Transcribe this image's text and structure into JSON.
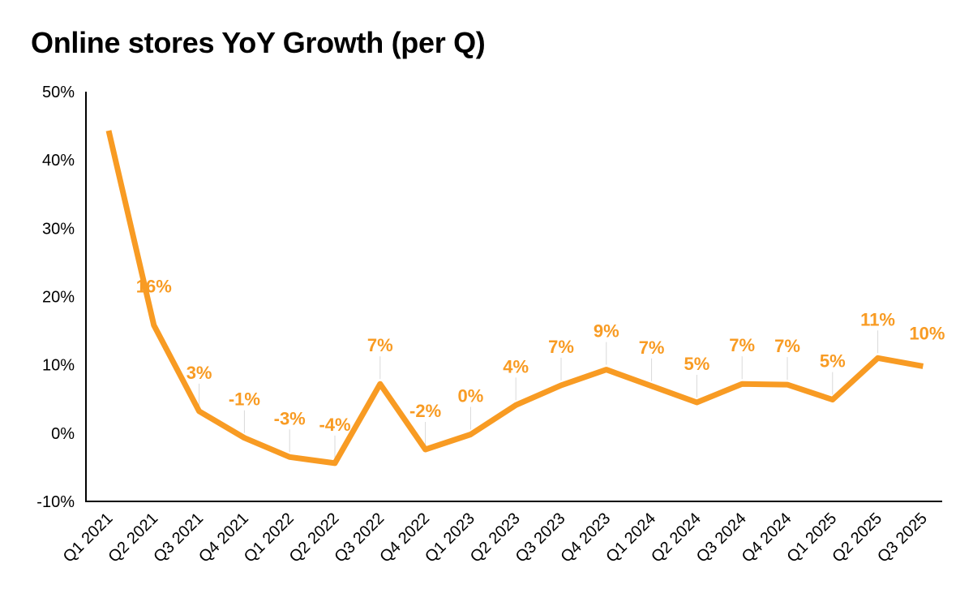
{
  "chart_data": {
    "type": "line",
    "title": "Online stores YoY Growth (per Q)",
    "xlabel": "",
    "ylabel": "",
    "categories": [
      "Q1 2021",
      "Q2 2021",
      "Q3 2021",
      "Q4 2021",
      "Q1 2022",
      "Q2 2022",
      "Q3 2022",
      "Q4 2022",
      "Q1 2023",
      "Q2 2023",
      "Q3 2023",
      "Q4 2023",
      "Q1 2024",
      "Q2 2024",
      "Q3 2024",
      "Q4 2024",
      "Q1 2025",
      "Q2 2025",
      "Q3 2025"
    ],
    "series": [
      {
        "name": "Online stores YoY Growth",
        "values": [
          44.3,
          15.8,
          3.2,
          -0.7,
          -3.5,
          -4.4,
          7.2,
          -2.4,
          -0.2,
          4.1,
          7.0,
          9.3,
          6.9,
          4.5,
          7.2,
          7.1,
          4.9,
          11.0,
          9.8
        ],
        "labels": [
          "",
          "16%",
          "3%",
          "-1%",
          "-3%",
          "-4%",
          "7%",
          "-2%",
          "0%",
          "4%",
          "7%",
          "9%",
          "7%",
          "5%",
          "7%",
          "7%",
          "5%",
          "11%",
          "10%"
        ]
      }
    ],
    "y_ticks": [
      "50%",
      "40%",
      "30%",
      "20%",
      "10%",
      "0%",
      "-10%"
    ],
    "ylim": [
      -10,
      50
    ],
    "grid": false,
    "legend": "none",
    "colors": {
      "line": "#F89B23",
      "label": "#F89B23",
      "axis": "#000000",
      "leader": "#D9D9D9"
    }
  }
}
